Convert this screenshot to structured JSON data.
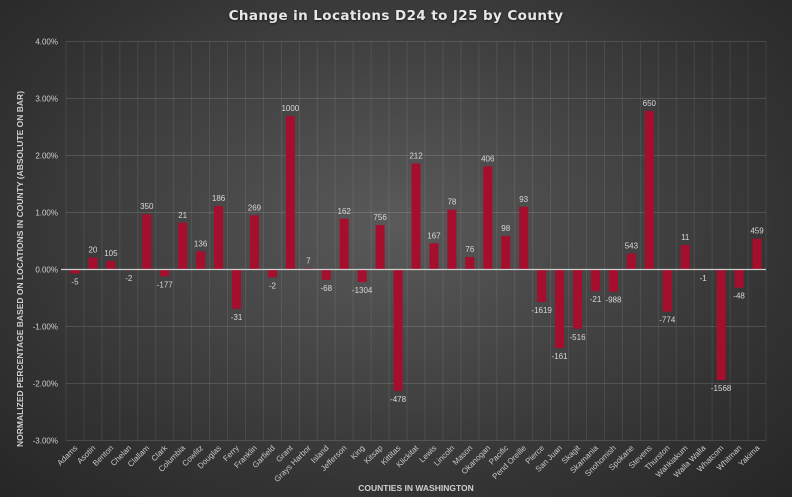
{
  "chart_data": {
    "type": "bar",
    "title": "Change in Locations D24 to J25 by County",
    "xlabel": "COUNTIES IN WASHINGTON",
    "ylabel": "NORMALIZED PERCENTAGE BASED ON LOCATIONS IN COUNTY (ABSOLUTE ON BAR)",
    "ylim": [
      -3.0,
      4.0
    ],
    "yticks": [
      "4.00%",
      "3.00%",
      "2.00%",
      "1.00%",
      "0.00%",
      "-1.00%",
      "-2.00%",
      "-3.00%"
    ],
    "ytick_values": [
      4,
      3,
      2,
      1,
      0,
      -1,
      -2,
      -3
    ],
    "grid": true,
    "legend": "none",
    "bar_color": "#a50e2d",
    "categories": [
      "Adams",
      "Asotin",
      "Benton",
      "Chelan",
      "Clallam",
      "Clark",
      "Columbia",
      "Cowlitz",
      "Douglas",
      "Ferry",
      "Franklin",
      "Garfield",
      "Grant",
      "Grays Harbor",
      "Island",
      "Jefferson",
      "King",
      "Kitsap",
      "Kittitas",
      "Klickitat",
      "Lewis",
      "Lincoln",
      "Mason",
      "Okanogan",
      "Pacific",
      "Pend Oreille",
      "Pierce",
      "San Juan",
      "Skagit",
      "Skamania",
      "Snohomish",
      "Spokane",
      "Stevens",
      "Thurston",
      "Wahkiakum",
      "Walla Walla",
      "Whatcom",
      "Whitman",
      "Yakima"
    ],
    "values": [
      -0.07,
      0.21,
      0.15,
      -0.01,
      0.97,
      -0.12,
      0.82,
      0.32,
      1.11,
      -0.69,
      0.95,
      -0.14,
      2.69,
      0.02,
      -0.18,
      0.89,
      -0.22,
      0.78,
      -2.13,
      1.86,
      0.46,
      1.05,
      0.22,
      1.81,
      0.59,
      1.1,
      -0.57,
      -1.38,
      -1.04,
      -0.38,
      -0.39,
      0.28,
      2.78,
      -0.74,
      0.43,
      -0.01,
      -1.94,
      -0.32,
      0.54
    ],
    "data_labels": [
      "-5",
      "20",
      "105",
      "-2",
      "350",
      "-177",
      "21",
      "136",
      "186",
      "-31",
      "269",
      "-2",
      "1000",
      "7",
      "-68",
      "162",
      "-1304",
      "756",
      "-478",
      "212",
      "167",
      "78",
      "76",
      "406",
      "98",
      "93",
      "-1619",
      "-161",
      "-516",
      "-21",
      "-988",
      "543",
      "650",
      "-774",
      "11",
      "-1",
      "-1568",
      "-48",
      "459"
    ],
    "units": "percent"
  }
}
